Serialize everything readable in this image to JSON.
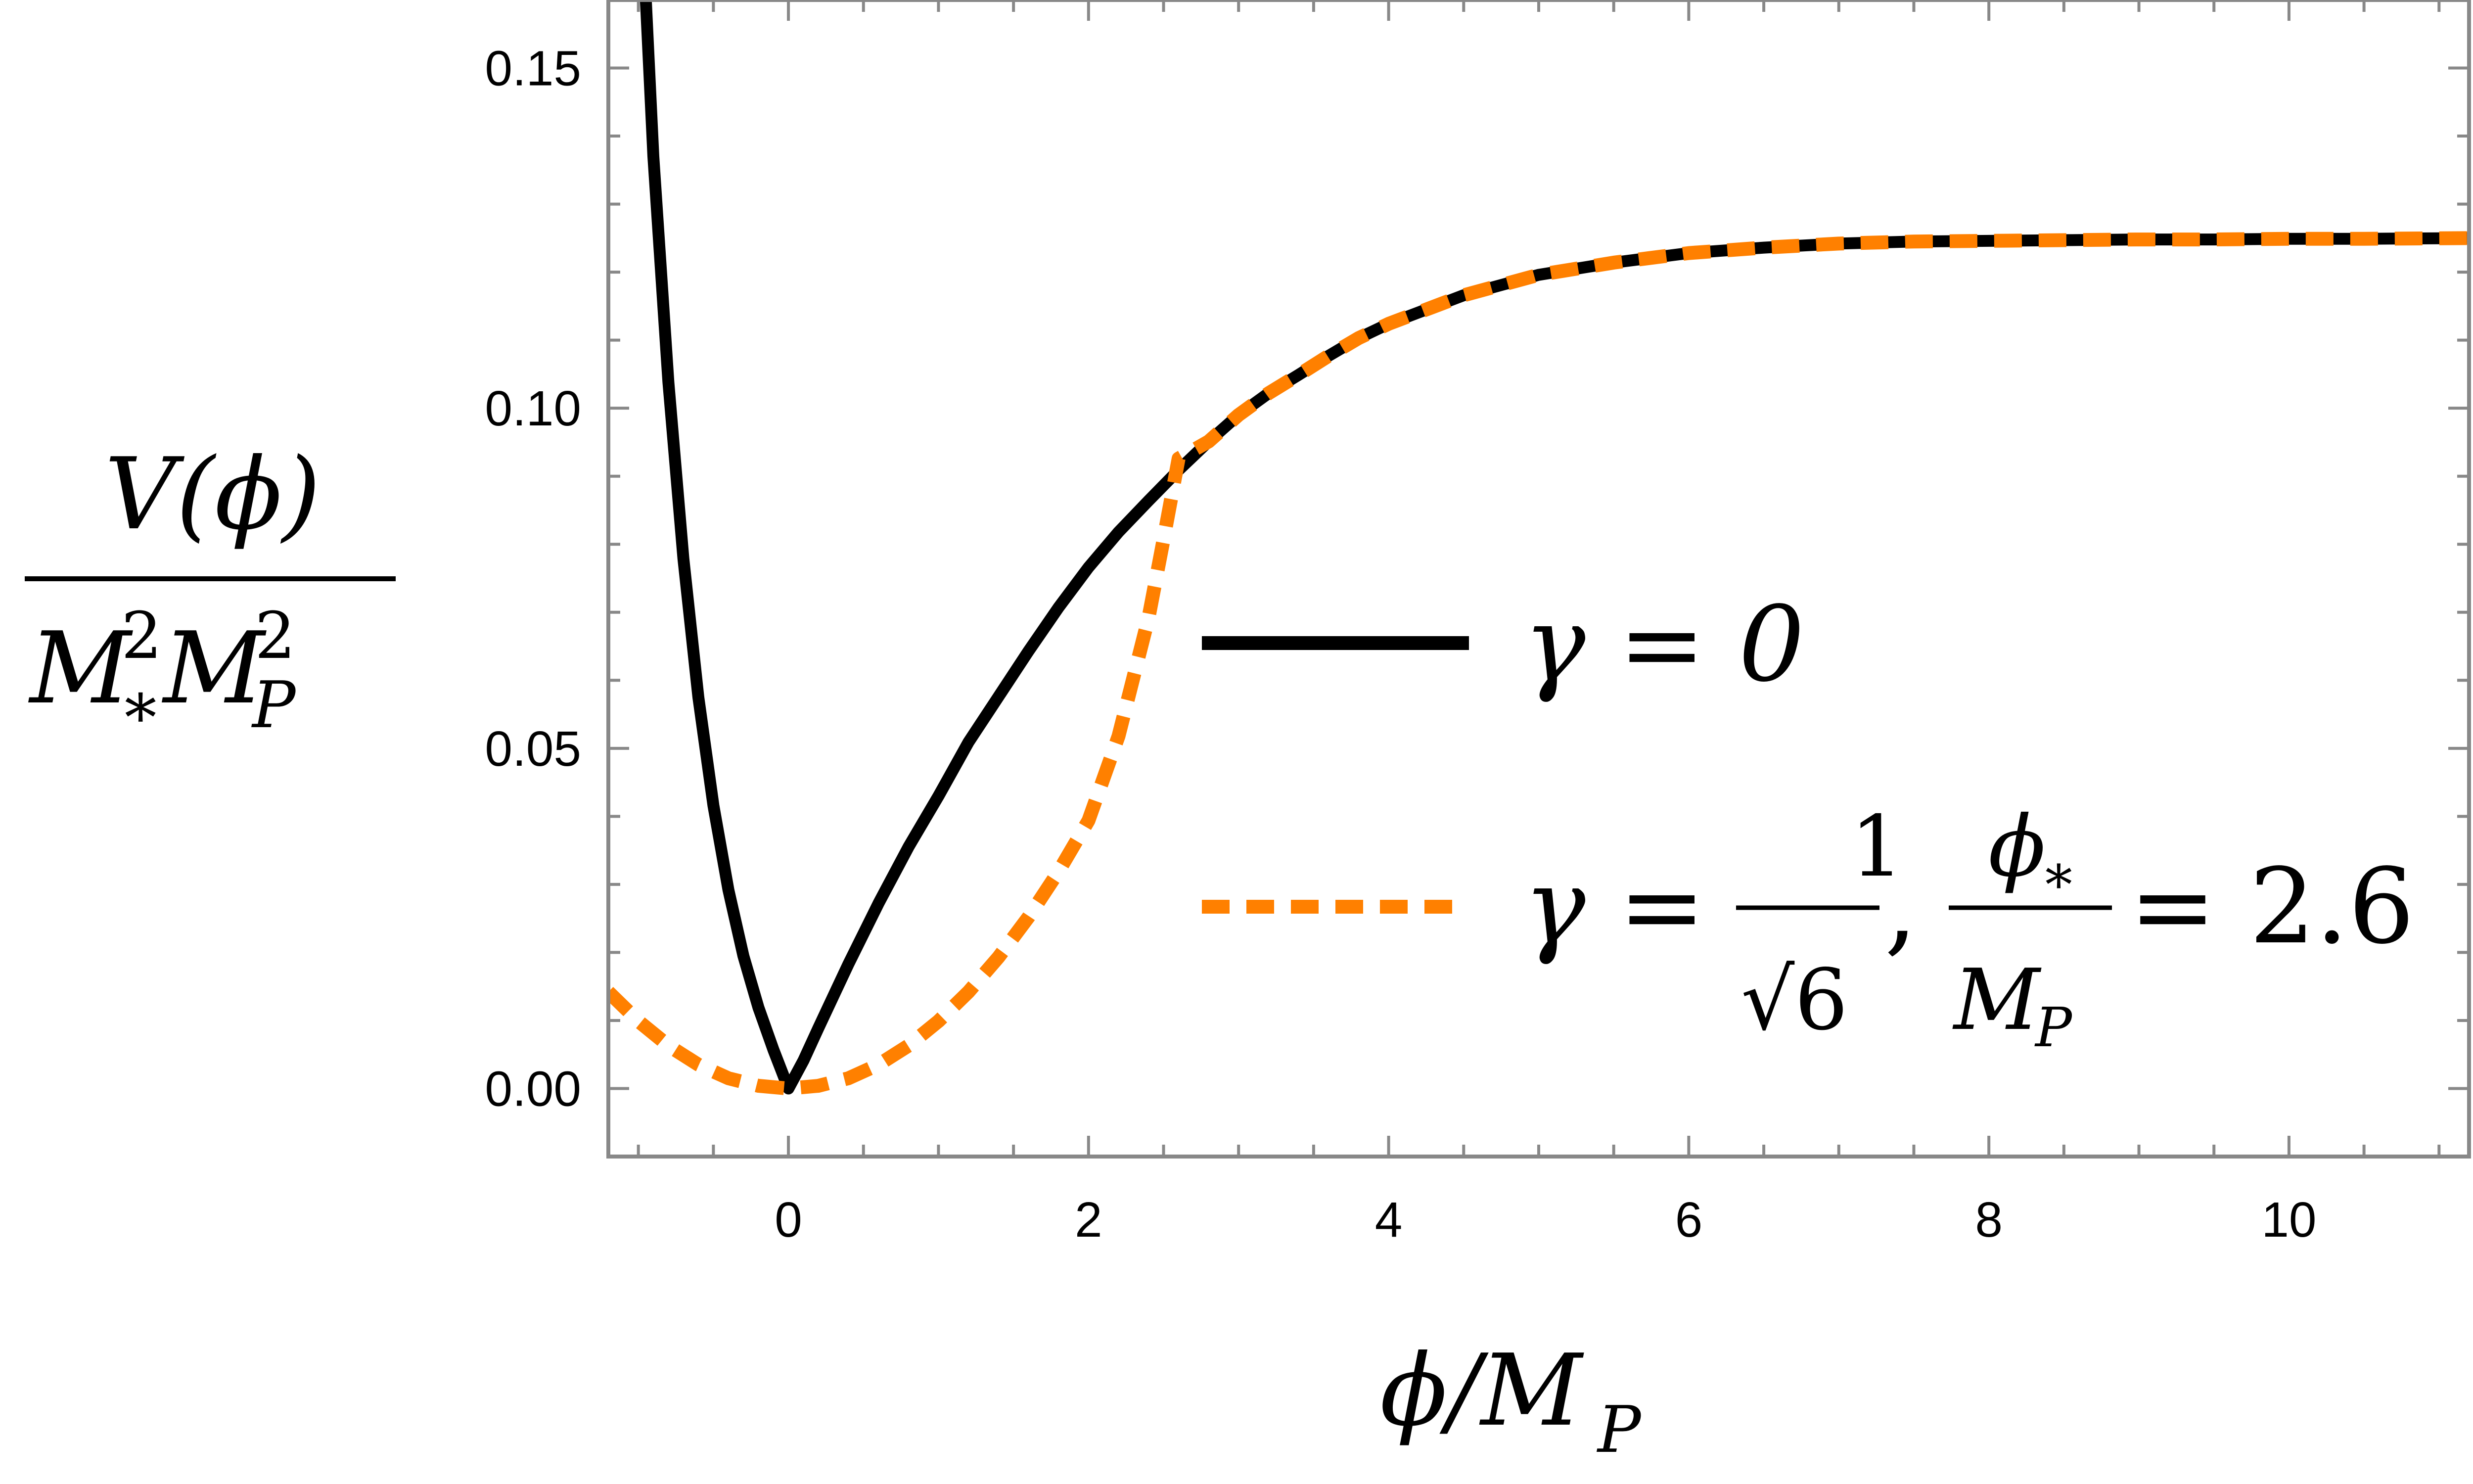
{
  "chart_data": {
    "type": "line",
    "xlabel": "ϕ/M_P",
    "ylabel": "V(ϕ) / M_*² M_P²",
    "xlim": [
      -1.2,
      11.2
    ],
    "ylim": [
      -0.01,
      0.16
    ],
    "x_ticks": [
      0,
      2,
      4,
      6,
      8,
      10
    ],
    "y_ticks": [
      0.0,
      0.05,
      0.1,
      0.15
    ],
    "x_tick_labels": [
      "0",
      "2",
      "4",
      "6",
      "8",
      "10"
    ],
    "y_tick_labels": [
      "0.00",
      "0.05",
      "0.10",
      "0.15"
    ],
    "grid": false,
    "legend_position": "right",
    "series": [
      {
        "name": "γ = 0",
        "style": "solid",
        "color": "#000000",
        "x": [
          -0.95,
          -0.9,
          -0.8,
          -0.7,
          -0.6,
          -0.5,
          -0.4,
          -0.3,
          -0.2,
          -0.1,
          0.0,
          0.1,
          0.2,
          0.4,
          0.6,
          0.8,
          1.0,
          1.2,
          1.4,
          1.6,
          1.8,
          2.0,
          2.2,
          2.4,
          2.6,
          2.8,
          3.0,
          3.2,
          3.4,
          3.6,
          3.8,
          4.0,
          4.5,
          5.0,
          5.5,
          6.0,
          6.5,
          7.0,
          7.5,
          8.0,
          8.5,
          9.0,
          9.5,
          10.0,
          10.5,
          11.2
        ],
        "y": [
          0.16,
          0.137,
          0.1038,
          0.0779,
          0.0575,
          0.0416,
          0.0292,
          0.0195,
          0.0119,
          0.0057,
          0.0,
          0.0041,
          0.0089,
          0.0183,
          0.0272,
          0.0355,
          0.043,
          0.0509,
          0.0576,
          0.0643,
          0.0707,
          0.0766,
          0.0818,
          0.0864,
          0.0909,
          0.0951,
          0.099,
          0.1022,
          0.1049,
          0.1077,
          0.1103,
          0.1124,
          0.1166,
          0.1196,
          0.1214,
          0.1228,
          0.1236,
          0.1242,
          0.1245,
          0.1246,
          0.1247,
          0.1248,
          0.1248,
          0.1249,
          0.1249,
          0.125
        ]
      },
      {
        "name": "γ = 1/√6, ϕ_*/M_P = 2.6",
        "style": "dashed",
        "color": "#FF8000",
        "x": [
          -1.2,
          -1.0,
          -0.8,
          -0.6,
          -0.4,
          -0.2,
          0.0,
          0.2,
          0.4,
          0.6,
          0.8,
          1.0,
          1.2,
          1.4,
          1.6,
          1.8,
          2.0,
          2.2,
          2.4,
          2.5,
          2.6,
          2.8,
          3.0,
          3.2,
          3.4,
          3.6,
          3.8,
          4.0,
          4.5,
          5.0,
          5.5,
          6.0,
          6.5,
          7.0,
          7.5,
          8.0,
          8.5,
          9.0,
          9.5,
          10.0,
          10.5,
          11.2
        ],
        "y": [
          0.0142,
          0.0099,
          0.0063,
          0.0035,
          0.0015,
          0.0004,
          0.0,
          0.0004,
          0.0015,
          0.0035,
          0.0063,
          0.0099,
          0.0142,
          0.0193,
          0.0252,
          0.0319,
          0.0394,
          0.0518,
          0.0692,
          0.0807,
          0.0926,
          0.0951,
          0.099,
          0.1022,
          0.1049,
          0.1077,
          0.1103,
          0.1124,
          0.1166,
          0.1196,
          0.1214,
          0.1228,
          0.1236,
          0.1242,
          0.1245,
          0.1246,
          0.1247,
          0.1248,
          0.1248,
          0.1249,
          0.1249,
          0.125
        ]
      }
    ]
  }
}
